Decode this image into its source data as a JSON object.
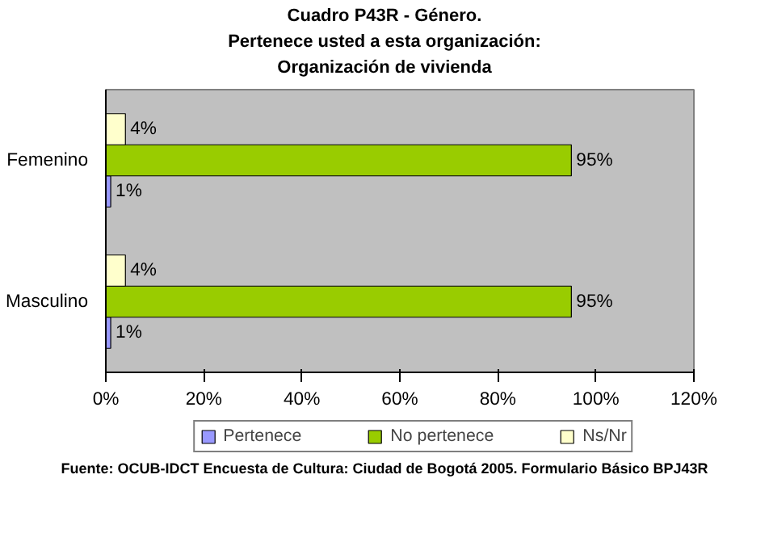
{
  "chart_data": {
    "type": "bar",
    "orientation": "horizontal",
    "title": "Cuadro P43R - Género.\nPertenece usted a esta organización:\nOrganización de vivienda",
    "categories": [
      "Femenino",
      "Masculino"
    ],
    "series": [
      {
        "name": "Pertenece",
        "color": "#9999ff",
        "values": [
          1,
          1
        ],
        "value_labels": [
          "1%",
          "1%"
        ]
      },
      {
        "name": "No pertenece",
        "color": "#99cc00",
        "values": [
          95,
          95
        ],
        "value_labels": [
          "95%",
          "95%"
        ]
      },
      {
        "name": "Ns/Nr",
        "color": "#ffffcc",
        "values": [
          4,
          4
        ],
        "value_labels": [
          "4%",
          "4%"
        ]
      }
    ],
    "xlim": [
      0,
      120
    ],
    "xticks": [
      {
        "value": 0,
        "label": "0%"
      },
      {
        "value": 20,
        "label": "20%"
      },
      {
        "value": 40,
        "label": "40%"
      },
      {
        "value": 60,
        "label": "60%"
      },
      {
        "value": 80,
        "label": "80%"
      },
      {
        "value": 100,
        "label": "100%"
      },
      {
        "value": 120,
        "label": "120%"
      }
    ],
    "grid": false,
    "legend": "bottom",
    "annotations": [
      "Fuente: OCUB-IDCT Encuesta de Cultura: Ciudad de Bogotá 2005. Formulario Básico BPJ43R"
    ]
  }
}
